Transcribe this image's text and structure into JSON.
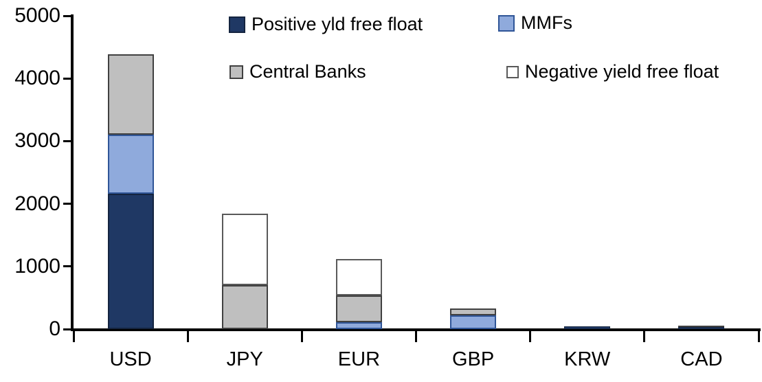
{
  "chart_data": {
    "type": "bar",
    "stacked": true,
    "title": "",
    "xlabel": "",
    "ylabel": "",
    "ylim": [
      0,
      5000
    ],
    "yticks": [
      0,
      1000,
      2000,
      3000,
      4000,
      5000
    ],
    "grid": false,
    "legend_position": "top",
    "categories": [
      "USD",
      "JPY",
      "EUR",
      "GBP",
      "KRW",
      "CAD"
    ],
    "series": [
      {
        "name": "Positive yld free float",
        "color": "#1F3864",
        "border": "#14243F",
        "values": [
          2160,
          0,
          0,
          0,
          40,
          35
        ]
      },
      {
        "name": "MMFs",
        "color": "#8FAADC",
        "border": "#2F5597",
        "values": [
          940,
          0,
          115,
          215,
          0,
          0
        ]
      },
      {
        "name": "Central Banks",
        "color": "#BFBFBF",
        "border": "#404040",
        "values": [
          1290,
          700,
          420,
          115,
          0,
          25
        ]
      },
      {
        "name": "Negative yield free float",
        "color": "#FFFFFF",
        "border": "#595959",
        "values": [
          0,
          1140,
          580,
          0,
          0,
          0
        ]
      }
    ],
    "totals": [
      4390,
      1840,
      1115,
      330,
      40,
      60
    ],
    "axis_color": "#000000",
    "background_color": "#FFFFFF"
  }
}
